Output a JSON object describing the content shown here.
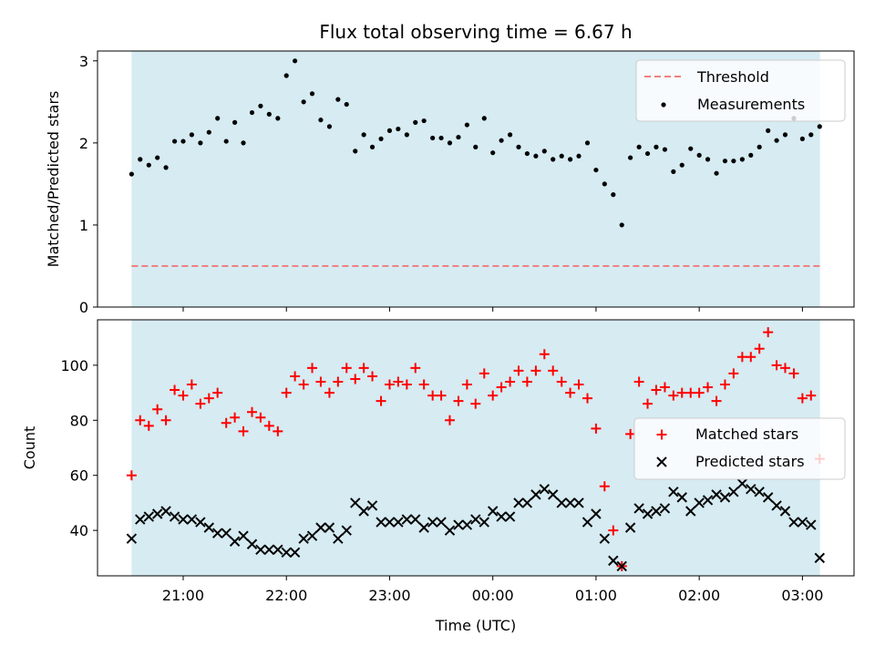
{
  "title": "Flux total observing time = 6.67 h",
  "colors": {
    "shade": "#add8e6",
    "threshold": "#f08080",
    "measurements": "#000000",
    "matched": "#ff0000",
    "predicted": "#000000"
  },
  "chart_data": [
    {
      "type": "scatter",
      "panel": "top",
      "xlabel": "",
      "ylabel": "Matched/Predicted stars",
      "ylim": [
        0,
        3.12
      ],
      "yticks": [
        0,
        1,
        2,
        3
      ],
      "xlim": [
        20.17,
        27.5
      ],
      "shaded_span": [
        20.5,
        27.17
      ],
      "legend": {
        "placement": "top-right",
        "entries": [
          "Threshold",
          "Measurements"
        ]
      },
      "threshold": {
        "name": "Threshold",
        "value": 0.5
      },
      "series": [
        {
          "name": "Measurements",
          "x": [
            20.5,
            20.583,
            20.667,
            20.75,
            20.833,
            20.917,
            21.0,
            21.083,
            21.167,
            21.25,
            21.333,
            21.417,
            21.5,
            21.583,
            21.667,
            21.75,
            21.833,
            21.917,
            22.0,
            22.083,
            22.167,
            22.25,
            22.333,
            22.417,
            22.5,
            22.583,
            22.667,
            22.75,
            22.833,
            22.917,
            23.0,
            23.083,
            23.167,
            23.25,
            23.333,
            23.417,
            23.5,
            23.583,
            23.667,
            23.75,
            23.833,
            23.917,
            24.0,
            24.083,
            24.167,
            24.25,
            24.333,
            24.417,
            24.5,
            24.583,
            24.667,
            24.75,
            24.833,
            24.917,
            25.0,
            25.083,
            25.167,
            25.25,
            25.333,
            25.417,
            25.5,
            25.583,
            25.667,
            25.75,
            25.833,
            25.917,
            26.0,
            26.083,
            26.167,
            26.25,
            26.333,
            26.417,
            26.5,
            26.583,
            26.667,
            26.75,
            26.833,
            26.917,
            27.0,
            27.083,
            27.167
          ],
          "y": [
            1.62,
            1.8,
            1.73,
            1.82,
            1.7,
            2.02,
            2.02,
            2.1,
            2.0,
            2.13,
            2.3,
            2.02,
            2.25,
            2.0,
            2.37,
            2.45,
            2.35,
            2.3,
            2.82,
            3.0,
            2.5,
            2.6,
            2.28,
            2.2,
            2.53,
            2.47,
            1.9,
            2.1,
            1.95,
            2.05,
            2.15,
            2.17,
            2.1,
            2.25,
            2.27,
            2.06,
            2.06,
            2.0,
            2.07,
            2.22,
            1.95,
            2.3,
            1.88,
            2.03,
            2.1,
            1.95,
            1.87,
            1.84,
            1.9,
            1.8,
            1.84,
            1.8,
            1.84,
            2.0,
            1.67,
            1.5,
            1.37,
            1.0,
            1.82,
            1.95,
            1.87,
            1.95,
            1.92,
            1.65,
            1.73,
            1.93,
            1.85,
            1.8,
            1.63,
            1.78,
            1.78,
            1.8,
            1.85,
            1.95,
            2.15,
            2.03,
            2.1,
            2.3,
            2.05,
            2.1,
            2.2
          ]
        }
      ]
    },
    {
      "type": "scatter",
      "panel": "bottom",
      "xlabel": "Time (UTC)",
      "ylabel": "Count",
      "ylim": [
        23.5,
        116.5
      ],
      "yticks": [
        40,
        60,
        80,
        100
      ],
      "xlim": [
        20.17,
        27.5
      ],
      "xticks": [
        21,
        22,
        23,
        24,
        25,
        26,
        27
      ],
      "xticklabels": [
        "21:00",
        "22:00",
        "23:00",
        "00:00",
        "01:00",
        "02:00",
        "03:00"
      ],
      "shaded_span": [
        20.5,
        27.17
      ],
      "legend": {
        "placement": "center-right",
        "entries": [
          "Matched stars",
          "Predicted stars"
        ]
      },
      "series": [
        {
          "name": "Matched stars",
          "marker": "+",
          "x": [
            20.5,
            20.583,
            20.667,
            20.75,
            20.833,
            20.917,
            21.0,
            21.083,
            21.167,
            21.25,
            21.333,
            21.417,
            21.5,
            21.583,
            21.667,
            21.75,
            21.833,
            21.917,
            22.0,
            22.083,
            22.167,
            22.25,
            22.333,
            22.417,
            22.5,
            22.583,
            22.667,
            22.75,
            22.833,
            22.917,
            23.0,
            23.083,
            23.167,
            23.25,
            23.333,
            23.417,
            23.5,
            23.583,
            23.667,
            23.75,
            23.833,
            23.917,
            24.0,
            24.083,
            24.167,
            24.25,
            24.333,
            24.417,
            24.5,
            24.583,
            24.667,
            24.75,
            24.833,
            24.917,
            25.0,
            25.083,
            25.167,
            25.25,
            25.333,
            25.417,
            25.5,
            25.583,
            25.667,
            25.75,
            25.833,
            25.917,
            26.0,
            26.083,
            26.167,
            26.25,
            26.333,
            26.417,
            26.5,
            26.583,
            26.667,
            26.75,
            26.833,
            26.917,
            27.0,
            27.083,
            27.167
          ],
          "y": [
            60,
            80,
            78,
            84,
            80,
            91,
            89,
            93,
            86,
            88,
            90,
            79,
            81,
            76,
            83,
            81,
            78,
            76,
            90,
            96,
            93,
            99,
            94,
            90,
            94,
            99,
            95,
            99,
            96,
            87,
            93,
            94,
            93,
            99,
            93,
            89,
            89,
            80,
            87,
            93,
            86,
            97,
            89,
            92,
            94,
            98,
            94,
            98,
            104,
            98,
            94,
            90,
            93,
            88,
            77,
            56,
            40,
            27,
            75,
            94,
            86,
            91,
            92,
            89,
            90,
            90,
            90,
            92,
            87,
            93,
            97,
            103,
            103,
            106,
            112,
            100,
            99,
            97,
            88,
            89,
            66
          ]
        },
        {
          "name": "Predicted stars",
          "marker": "x",
          "x": [
            20.5,
            20.583,
            20.667,
            20.75,
            20.833,
            20.917,
            21.0,
            21.083,
            21.167,
            21.25,
            21.333,
            21.417,
            21.5,
            21.583,
            21.667,
            21.75,
            21.833,
            21.917,
            22.0,
            22.083,
            22.167,
            22.25,
            22.333,
            22.417,
            22.5,
            22.583,
            22.667,
            22.75,
            22.833,
            22.917,
            23.0,
            23.083,
            23.167,
            23.25,
            23.333,
            23.417,
            23.5,
            23.583,
            23.667,
            23.75,
            23.833,
            23.917,
            24.0,
            24.083,
            24.167,
            24.25,
            24.333,
            24.417,
            24.5,
            24.583,
            24.667,
            24.75,
            24.833,
            24.917,
            25.0,
            25.083,
            25.167,
            25.25,
            25.333,
            25.417,
            25.5,
            25.583,
            25.667,
            25.75,
            25.833,
            25.917,
            26.0,
            26.083,
            26.167,
            26.25,
            26.333,
            26.417,
            26.5,
            26.583,
            26.667,
            26.75,
            26.833,
            26.917,
            27.0,
            27.083,
            27.167
          ],
          "y": [
            37,
            44,
            45,
            46,
            47,
            45,
            44,
            44,
            43,
            41,
            39,
            39,
            36,
            38,
            35,
            33,
            33,
            33,
            32,
            32,
            37,
            38,
            41,
            41,
            37,
            40,
            50,
            47,
            49,
            43,
            43,
            43,
            44,
            44,
            41,
            43,
            43,
            40,
            42,
            42,
            44,
            43,
            47,
            45,
            45,
            50,
            50,
            53,
            55,
            53,
            50,
            50,
            50,
            43,
            46,
            37,
            29,
            27,
            41,
            48,
            46,
            47,
            48,
            54,
            52,
            47,
            50,
            51,
            53,
            52,
            54,
            57,
            55,
            54,
            52,
            49,
            47,
            43,
            43,
            42,
            30
          ]
        }
      ]
    }
  ]
}
